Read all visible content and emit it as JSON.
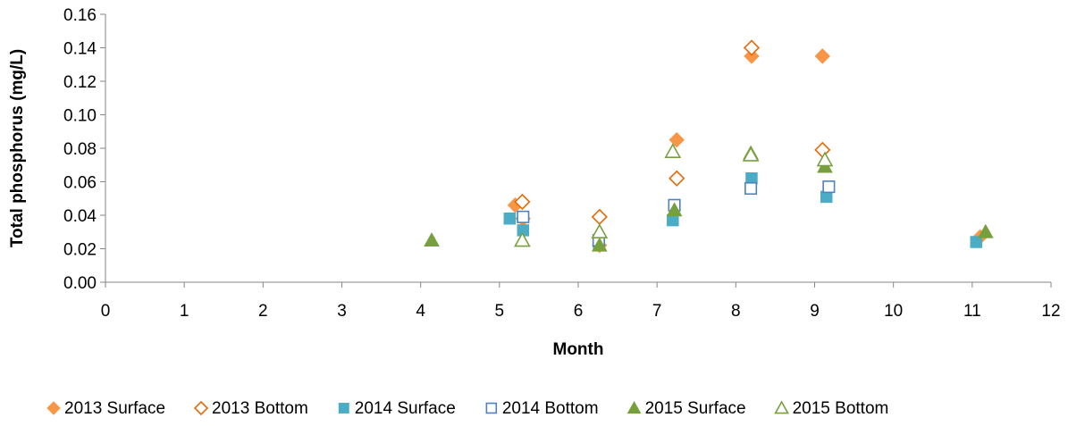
{
  "chart_data": {
    "type": "scatter",
    "title": "",
    "xlabel": "Month",
    "ylabel": "Total phosphorus (mg/L)",
    "xlim": [
      0,
      12
    ],
    "ylim": [
      0,
      0.16
    ],
    "x_ticks": [
      "0",
      "1",
      "2",
      "3",
      "4",
      "5",
      "6",
      "7",
      "8",
      "9",
      "10",
      "11",
      "12"
    ],
    "y_ticks": [
      "0.00",
      "0.02",
      "0.04",
      "0.06",
      "0.08",
      "0.10",
      "0.12",
      "0.14",
      "0.16"
    ],
    "grid": false,
    "legend_position": "bottom",
    "series": [
      {
        "name": "2013 Surface",
        "marker": "diamond",
        "filled": true,
        "color": "#F79646",
        "points": [
          [
            5.2,
            0.046
          ],
          [
            5.3,
            0.038
          ],
          [
            6.27,
            0.022
          ],
          [
            7.25,
            0.085
          ],
          [
            8.2,
            0.135
          ],
          [
            9.1,
            0.135
          ],
          [
            11.1,
            0.027
          ]
        ]
      },
      {
        "name": "2013 Bottom",
        "marker": "diamond",
        "filled": false,
        "color": "#E46C0A",
        "points": [
          [
            5.29,
            0.048
          ],
          [
            6.27,
            0.039
          ],
          [
            7.25,
            0.062
          ],
          [
            8.2,
            0.14
          ],
          [
            9.1,
            0.079
          ]
        ]
      },
      {
        "name": "2014 Surface",
        "marker": "square",
        "filled": true,
        "color": "#4BACC6",
        "points": [
          [
            5.13,
            0.038
          ],
          [
            5.3,
            0.031
          ],
          [
            6.26,
            0.024
          ],
          [
            7.2,
            0.037
          ],
          [
            8.2,
            0.062
          ],
          [
            9.15,
            0.051
          ],
          [
            11.05,
            0.024
          ]
        ]
      },
      {
        "name": "2014 Bottom",
        "marker": "square",
        "filled": false,
        "color": "#4F81BD",
        "points": [
          [
            5.3,
            0.039
          ],
          [
            6.26,
            0.025
          ],
          [
            7.22,
            0.046
          ],
          [
            8.19,
            0.056
          ],
          [
            9.18,
            0.057
          ]
        ]
      },
      {
        "name": "2015 Surface",
        "marker": "triangle",
        "filled": true,
        "color": "#77A03C",
        "points": [
          [
            4.14,
            0.025
          ],
          [
            5.29,
            0.025
          ],
          [
            6.27,
            0.022
          ],
          [
            7.22,
            0.043
          ],
          [
            8.19,
            0.077
          ],
          [
            9.13,
            0.069
          ],
          [
            11.17,
            0.03
          ]
        ]
      },
      {
        "name": "2015 Bottom",
        "marker": "triangle",
        "filled": false,
        "color": "#77A03C",
        "points": [
          [
            5.29,
            0.025
          ],
          [
            6.27,
            0.03
          ],
          [
            7.2,
            0.078
          ],
          [
            8.19,
            0.076
          ],
          [
            9.13,
            0.073
          ]
        ]
      }
    ]
  }
}
